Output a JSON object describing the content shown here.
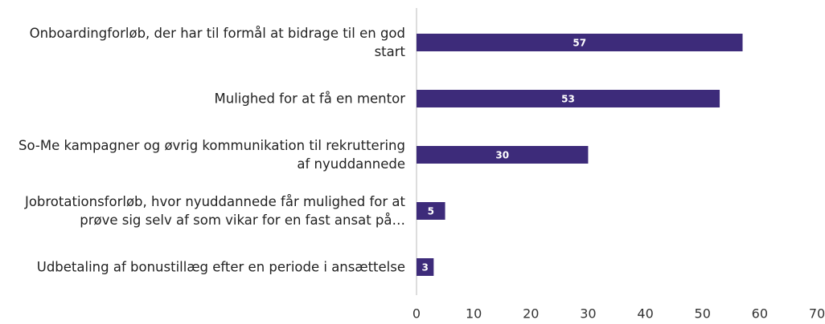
{
  "chart_data": {
    "type": "bar",
    "orientation": "horizontal",
    "categories": [
      "Onboardingforløb, der har til formål at bidrage til en god start",
      "Mulighed for at få en mentor",
      "So-Me kampagner og øvrig kommunikation til rekruttering af nyuddannede",
      "Jobrotationsforløb, hvor nyuddannede får mulighed for at prøve sig selv af som vikar for en fast ansat på…",
      "Udbetaling af bonustillæg efter en periode i ansættelse"
    ],
    "values": [
      57,
      53,
      30,
      5,
      3
    ],
    "color": "#3d2b7a",
    "xlim": [
      0,
      70
    ],
    "xticks": [
      0,
      10,
      20,
      30,
      40,
      50,
      60,
      70
    ],
    "grid": false
  }
}
